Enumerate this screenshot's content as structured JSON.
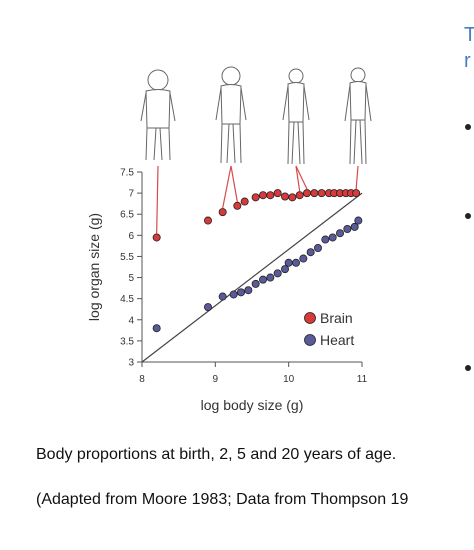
{
  "chart_data": {
    "type": "scatter",
    "xlabel": "log body size (g)",
    "ylabel": "log organ size (g)",
    "xlim": [
      8,
      11
    ],
    "ylim": [
      3,
      7.5
    ],
    "xticks": [
      "8",
      "9",
      "10",
      "11"
    ],
    "yticks": [
      "3",
      "3.5",
      "4",
      "4.5",
      "5",
      "5.5",
      "6",
      "6.5",
      "7",
      "7.5"
    ],
    "legend_position": "bottom-right",
    "reference_line": {
      "x": [
        8,
        11
      ],
      "y": [
        3,
        7
      ]
    },
    "series": [
      {
        "name": "Brain",
        "color": "#d63a3a",
        "x": [
          8.2,
          8.9,
          9.1,
          9.3,
          9.4,
          9.55,
          9.65,
          9.75,
          9.85,
          9.95,
          10.05,
          10.15,
          10.25,
          10.35,
          10.45,
          10.55,
          10.62,
          10.7,
          10.78,
          10.85,
          10.92
        ],
        "y": [
          5.95,
          6.35,
          6.55,
          6.7,
          6.8,
          6.9,
          6.95,
          6.95,
          7.0,
          6.92,
          6.9,
          6.95,
          7.0,
          7.0,
          7.0,
          7.0,
          7.0,
          7.0,
          7.0,
          7.0,
          7.0
        ]
      },
      {
        "name": "Heart",
        "color": "#5a5a9a",
        "x": [
          8.2,
          8.9,
          9.1,
          9.25,
          9.35,
          9.45,
          9.55,
          9.65,
          9.75,
          9.85,
          9.95,
          10.0,
          10.1,
          10.2,
          10.3,
          10.4,
          10.5,
          10.6,
          10.7,
          10.8,
          10.9,
          10.95
        ],
        "y": [
          3.8,
          4.3,
          4.55,
          4.6,
          4.65,
          4.7,
          4.85,
          4.95,
          5.0,
          5.1,
          5.2,
          5.35,
          5.35,
          5.45,
          5.6,
          5.7,
          5.9,
          5.95,
          6.05,
          6.15,
          6.2,
          6.35
        ]
      }
    ]
  },
  "illustrations": [
    {
      "icon": "infant-figure-icon",
      "x": 8.2
    },
    {
      "icon": "toddler-figure-icon",
      "x": 9.3
    },
    {
      "icon": "child-figure-icon",
      "x": 10.1
    },
    {
      "icon": "adult-figure-icon",
      "x": 10.92
    }
  ],
  "caption": {
    "line1": "Body proportions at birth, 2, 5 and 20 years of age.",
    "line2": "(Adapted from Moore 1983; Data from Thompson 19"
  },
  "side_panel": {
    "title_line1": "T",
    "title_line2": "r"
  }
}
